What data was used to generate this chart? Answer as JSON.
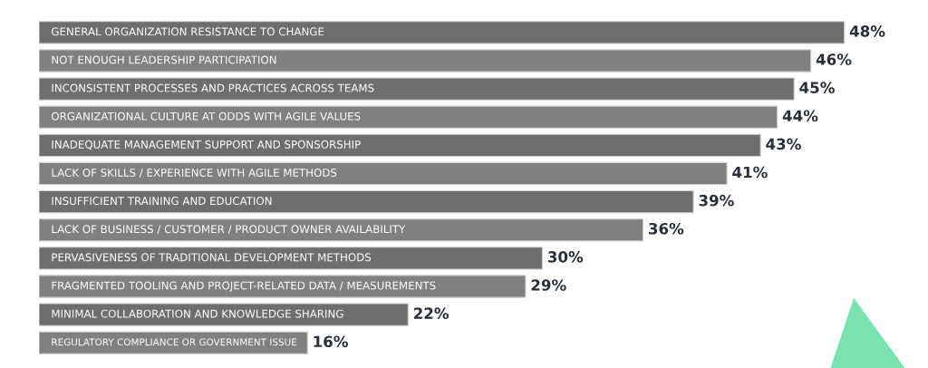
{
  "chart_data": {
    "type": "bar",
    "orientation": "horizontal",
    "categories": [
      "GENERAL ORGANIZATION RESISTANCE TO CHANGE",
      "NOT ENOUGH LEADERSHIP PARTICIPATION",
      "INCONSISTENT PROCESSES AND PRACTICES ACROSS TEAMS",
      "ORGANIZATIONAL CULTURE AT ODDS WITH AGILE VALUES",
      "INADEQUATE MANAGEMENT SUPPORT AND SPONSORSHIP",
      "LACK OF SKILLS / EXPERIENCE WITH AGILE METHODS",
      "INSUFFICIENT TRAINING AND EDUCATION",
      "LACK OF BUSINESS / CUSTOMER / PRODUCT OWNER AVAILABILITY",
      "PERVASIVENESS OF TRADITIONAL DEVELOPMENT METHODS",
      "FRAGMENTED TOOLING AND PROJECT-RELATED DATA / MEASUREMENTS",
      "MINIMAL COLLABORATION AND KNOWLEDGE SHARING",
      "REGULATORY COMPLIANCE OR GOVERNMENT ISSUE"
    ],
    "values": [
      48,
      46,
      45,
      44,
      43,
      41,
      39,
      36,
      30,
      29,
      22,
      16
    ],
    "colors": [
      "#6e6e6e",
      "#808080",
      "#6e6e6e",
      "#808080",
      "#6e6e6e",
      "#808080",
      "#6e6e6e",
      "#808080",
      "#6e6e6e",
      "#808080",
      "#6e6e6e",
      "#808080"
    ],
    "value_labels": [
      "48%",
      "46%",
      "45%",
      "44%",
      "43%",
      "41%",
      "39%",
      "36%",
      "30%",
      "29%",
      "22%",
      "16%"
    ]
  }
}
